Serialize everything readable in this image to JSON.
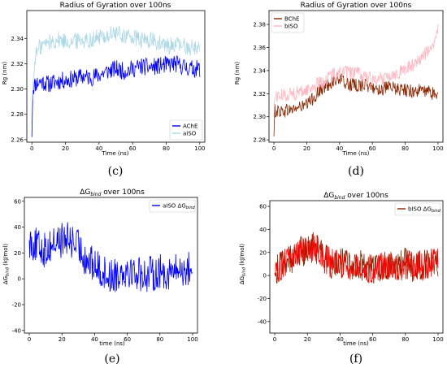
{
  "figure": {
    "panels": [
      {
        "letter": "(c)"
      },
      {
        "letter": "(d)"
      },
      {
        "letter": "(e)"
      },
      {
        "letter": "(f)"
      }
    ]
  },
  "chart_data": [
    {
      "type": "line",
      "title": "Radius of Gyration over 100ns",
      "xlabel": "Time (ns)",
      "ylabel": "Rg (nm)",
      "xlim": [
        -3,
        103
      ],
      "ylim": [
        2.258,
        2.362
      ],
      "xticks": [
        0,
        20,
        40,
        60,
        80,
        100
      ],
      "yticks": [
        2.26,
        2.28,
        2.3,
        2.32,
        2.34
      ],
      "ytick_decimals": 2,
      "legend": "bottom-right",
      "series": [
        {
          "name": "AChE",
          "color": "#0000ff",
          "points": [
            [
              0,
              2.262
            ],
            [
              0.5,
              2.3
            ],
            [
              2,
              2.304
            ],
            [
              5,
              2.306
            ],
            [
              10,
              2.304
            ],
            [
              15,
              2.306
            ],
            [
              20,
              2.307
            ],
            [
              25,
              2.308
            ],
            [
              30,
              2.31
            ],
            [
              35,
              2.309
            ],
            [
              40,
              2.311
            ],
            [
              45,
              2.314
            ],
            [
              50,
              2.316
            ],
            [
              55,
              2.314
            ],
            [
              60,
              2.316
            ],
            [
              65,
              2.318
            ],
            [
              70,
              2.317
            ],
            [
              75,
              2.318
            ],
            [
              80,
              2.319
            ],
            [
              85,
              2.32
            ],
            [
              90,
              2.318
            ],
            [
              95,
              2.316
            ],
            [
              100,
              2.316
            ]
          ],
          "noise": 0.007
        },
        {
          "name": "aISO",
          "color": "#add8e6",
          "points": [
            [
              0,
              2.29
            ],
            [
              2,
              2.326
            ],
            [
              5,
              2.334
            ],
            [
              10,
              2.337
            ],
            [
              15,
              2.339
            ],
            [
              20,
              2.338
            ],
            [
              25,
              2.338
            ],
            [
              30,
              2.339
            ],
            [
              35,
              2.339
            ],
            [
              40,
              2.341
            ],
            [
              45,
              2.342
            ],
            [
              50,
              2.344
            ],
            [
              55,
              2.342
            ],
            [
              60,
              2.341
            ],
            [
              65,
              2.338
            ],
            [
              70,
              2.339
            ],
            [
              75,
              2.336
            ],
            [
              80,
              2.334
            ],
            [
              85,
              2.335
            ],
            [
              90,
              2.334
            ],
            [
              95,
              2.333
            ],
            [
              100,
              2.333
            ]
          ],
          "noise": 0.007
        }
      ]
    },
    {
      "type": "line",
      "title": "Radius of Gyration over 100ns",
      "xlabel": "Time (ns)",
      "ylabel": "Rg (nm)",
      "xlim": [
        -3,
        103
      ],
      "ylim": [
        2.278,
        2.392
      ],
      "xticks": [
        0,
        20,
        40,
        60,
        80,
        100
      ],
      "yticks": [
        2.28,
        2.3,
        2.32,
        2.34,
        2.36,
        2.38
      ],
      "ytick_decimals": 2,
      "legend": "top-left",
      "series": [
        {
          "name": "BChE",
          "color": "#8b2500",
          "points": [
            [
              0,
              2.283
            ],
            [
              0.5,
              2.305
            ],
            [
              5,
              2.305
            ],
            [
              10,
              2.306
            ],
            [
              15,
              2.308
            ],
            [
              20,
              2.31
            ],
            [
              25,
              2.318
            ],
            [
              30,
              2.325
            ],
            [
              35,
              2.33
            ],
            [
              40,
              2.333
            ],
            [
              45,
              2.328
            ],
            [
              50,
              2.327
            ],
            [
              55,
              2.328
            ],
            [
              60,
              2.325
            ],
            [
              65,
              2.324
            ],
            [
              70,
              2.325
            ],
            [
              75,
              2.324
            ],
            [
              80,
              2.323
            ],
            [
              85,
              2.322
            ],
            [
              90,
              2.323
            ],
            [
              95,
              2.321
            ],
            [
              100,
              2.319
            ]
          ],
          "noise": 0.006
        },
        {
          "name": "bISO",
          "color": "#ffb6c1",
          "points": [
            [
              0,
              2.3
            ],
            [
              0.5,
              2.318
            ],
            [
              5,
              2.318
            ],
            [
              10,
              2.32
            ],
            [
              15,
              2.321
            ],
            [
              20,
              2.323
            ],
            [
              25,
              2.327
            ],
            [
              30,
              2.33
            ],
            [
              35,
              2.336
            ],
            [
              40,
              2.339
            ],
            [
              45,
              2.338
            ],
            [
              50,
              2.338
            ],
            [
              55,
              2.335
            ],
            [
              60,
              2.332
            ],
            [
              65,
              2.333
            ],
            [
              70,
              2.336
            ],
            [
              75,
              2.338
            ],
            [
              80,
              2.341
            ],
            [
              85,
              2.345
            ],
            [
              90,
              2.352
            ],
            [
              95,
              2.358
            ],
            [
              98,
              2.365
            ],
            [
              100,
              2.375
            ]
          ],
          "noise": 0.006
        }
      ]
    },
    {
      "type": "line",
      "title": "ΔGbind over 100ns",
      "xlabel": "time (ns)",
      "ylabel": "ΔGbind (kJ/mol)",
      "xlim": [
        -3,
        103
      ],
      "ylim": [
        -42,
        63
      ],
      "xticks": [
        0,
        20,
        40,
        60,
        80,
        100
      ],
      "yticks": [
        -40,
        -20,
        0,
        20,
        40,
        60
      ],
      "ytick_decimals": 0,
      "legend": "top-right",
      "series": [
        {
          "name": "aISO ΔGbind",
          "color": "#0000ff",
          "points": [
            [
              0,
              30
            ],
            [
              5,
              25
            ],
            [
              10,
              22
            ],
            [
              15,
              28
            ],
            [
              20,
              30
            ],
            [
              25,
              30
            ],
            [
              30,
              25
            ],
            [
              35,
              15
            ],
            [
              40,
              10
            ],
            [
              45,
              5
            ],
            [
              50,
              2
            ],
            [
              55,
              5
            ],
            [
              60,
              8
            ],
            [
              65,
              5
            ],
            [
              70,
              3
            ],
            [
              75,
              4
            ],
            [
              80,
              5
            ],
            [
              85,
              5
            ],
            [
              90,
              6
            ],
            [
              95,
              7
            ],
            [
              100,
              8
            ]
          ],
          "noise": 14
        }
      ]
    },
    {
      "type": "line",
      "title": "ΔGbind over 100ns",
      "xlabel": "time (ns)",
      "ylabel": "ΔGbind (kJ/mol)",
      "xlim": [
        -3,
        103
      ],
      "ylim": [
        -50,
        65
      ],
      "xticks": [
        0,
        20,
        40,
        60,
        80,
        100
      ],
      "yticks": [
        -40,
        -20,
        0,
        20,
        40,
        60
      ],
      "ytick_decimals": 0,
      "legend": "top-right",
      "series": [
        {
          "name": "bISO ΔGbind",
          "color": "#8b2500",
          "points": [
            [
              0,
              2
            ],
            [
              5,
              10
            ],
            [
              10,
              15
            ],
            [
              15,
              20
            ],
            [
              20,
              22
            ],
            [
              25,
              25
            ],
            [
              30,
              15
            ],
            [
              35,
              10
            ],
            [
              40,
              12
            ],
            [
              45,
              8
            ],
            [
              50,
              10
            ],
            [
              55,
              8
            ],
            [
              60,
              5
            ],
            [
              65,
              8
            ],
            [
              70,
              10
            ],
            [
              75,
              8
            ],
            [
              80,
              10
            ],
            [
              85,
              8
            ],
            [
              90,
              8
            ],
            [
              95,
              10
            ],
            [
              100,
              12
            ]
          ],
          "noise": 14
        },
        {
          "name": "",
          "color": "#ff0000",
          "points": [
            [
              0,
              2
            ],
            [
              5,
              10
            ],
            [
              10,
              15
            ],
            [
              15,
              20
            ],
            [
              20,
              22
            ],
            [
              25,
              25
            ],
            [
              30,
              15
            ],
            [
              35,
              10
            ],
            [
              40,
              12
            ],
            [
              45,
              8
            ],
            [
              50,
              10
            ],
            [
              55,
              8
            ],
            [
              60,
              5
            ],
            [
              65,
              8
            ],
            [
              70,
              10
            ],
            [
              75,
              8
            ],
            [
              80,
              10
            ],
            [
              85,
              8
            ],
            [
              90,
              8
            ],
            [
              95,
              10
            ],
            [
              100,
              12
            ]
          ],
          "noise": 13
        }
      ]
    }
  ]
}
